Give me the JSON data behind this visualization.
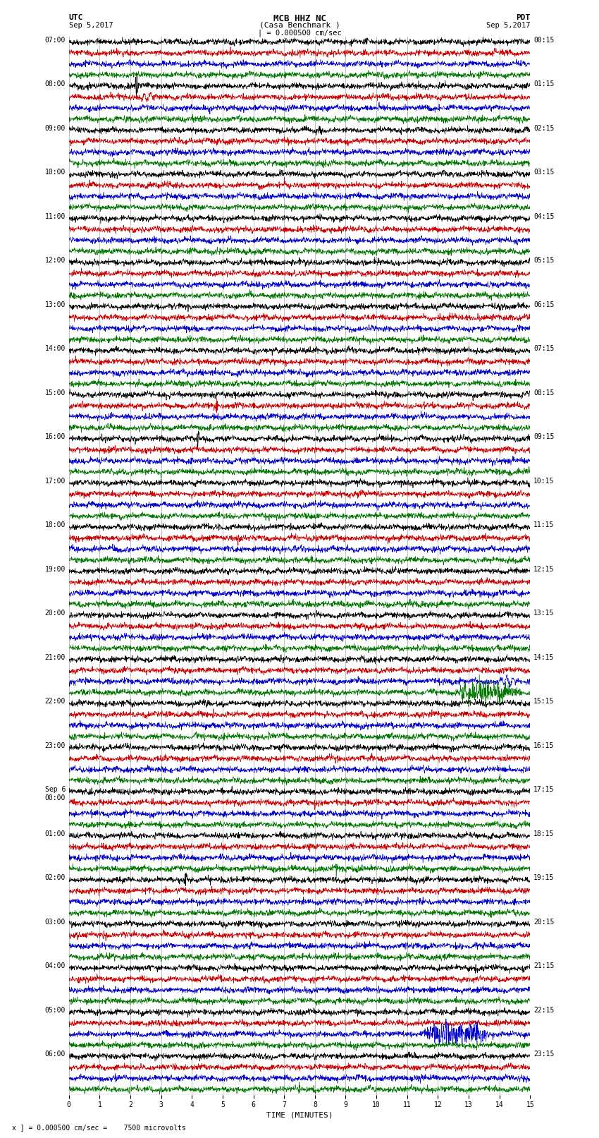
{
  "title_line1": "MCB HHZ NC",
  "title_line2": "(Casa Benchmark )",
  "title_line3": "| = 0.000500 cm/sec",
  "left_label_top": "UTC",
  "left_label_date": "Sep 5,2017",
  "right_label_top": "PDT",
  "right_label_date": "Sep 5,2017",
  "bottom_label": "TIME (MINUTES)",
  "bottom_note": "x ] = 0.000500 cm/sec =    7500 microvolts",
  "utc_times": [
    "07:00",
    "08:00",
    "09:00",
    "10:00",
    "11:00",
    "12:00",
    "13:00",
    "14:00",
    "15:00",
    "16:00",
    "17:00",
    "18:00",
    "19:00",
    "20:00",
    "21:00",
    "22:00",
    "23:00",
    "Sep 6\n00:00",
    "01:00",
    "02:00",
    "03:00",
    "04:00",
    "05:00",
    "06:00"
  ],
  "pdt_times": [
    "00:15",
    "01:15",
    "02:15",
    "03:15",
    "04:15",
    "05:15",
    "06:15",
    "07:15",
    "08:15",
    "09:15",
    "10:15",
    "11:15",
    "12:15",
    "13:15",
    "14:15",
    "15:15",
    "16:15",
    "17:15",
    "18:15",
    "19:15",
    "20:15",
    "21:15",
    "22:15",
    "23:15"
  ],
  "num_rows": 24,
  "traces_per_row": 4,
  "trace_colors": [
    "#000000",
    "#cc0000",
    "#0000cc",
    "#007700"
  ],
  "background_color": "#ffffff",
  "grid_color": "#999999",
  "x_ticks": [
    0,
    1,
    2,
    3,
    4,
    5,
    6,
    7,
    8,
    9,
    10,
    11,
    12,
    13,
    14,
    15
  ],
  "x_min": 0,
  "x_max": 15,
  "seed": 42
}
